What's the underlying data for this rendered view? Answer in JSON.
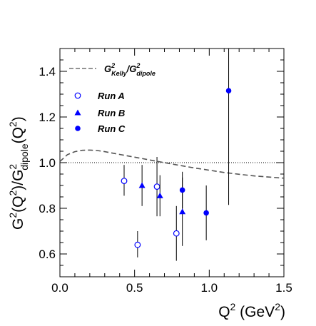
{
  "chart_data": {
    "type": "scatter",
    "xlabel": {
      "base": "Q",
      "sup": "2",
      "unit": " (GeV",
      "unit_sup": "2",
      "close": ")"
    },
    "ylabel": {
      "p1": "G",
      "p1_sup": "2",
      "p2": "(Q",
      "p2_sup": "2",
      "p3": ")/G",
      "p3_sup": "2",
      "p3_sub": "dipole",
      "p4": "(Q",
      "p4_sup": "2",
      "p5": ")"
    },
    "xlim": [
      0.0,
      1.5
    ],
    "ylim": [
      0.5,
      1.5
    ],
    "x_ticks": [
      0.0,
      0.5,
      1.0,
      1.5
    ],
    "x_tick_labels": [
      "0.0",
      "0.5",
      "1.0",
      "1.5"
    ],
    "y_ticks": [
      0.6,
      0.8,
      1.0,
      1.2,
      1.4
    ],
    "y_tick_labels": [
      "0.6",
      "0.8",
      "1.0",
      "1.2",
      "1.4"
    ],
    "reference_line_y": 1.0,
    "legend_position": "top-left",
    "legend": {
      "curve": {
        "main": "G",
        "sup": "2",
        "sub": "Kelly",
        "slash": "/G",
        "sup2": "2",
        "sub2": "dipole"
      }
    },
    "series": [
      {
        "name": "Run A",
        "marker": "open-circle",
        "color": "#0000ff",
        "points": [
          {
            "x": 0.43,
            "y": 0.92,
            "lo": 0.855,
            "hi": 0.99
          },
          {
            "x": 0.52,
            "y": 0.64,
            "lo": 0.585,
            "hi": 0.7
          },
          {
            "x": 0.65,
            "y": 0.895,
            "lo": 0.765,
            "hi": 1.025
          },
          {
            "x": 0.78,
            "y": 0.69,
            "lo": 0.57,
            "hi": 0.81
          }
        ]
      },
      {
        "name": "Run B",
        "marker": "filled-triangle",
        "color": "#0000ff",
        "points": [
          {
            "x": 0.55,
            "y": 0.9,
            "lo": 0.81,
            "hi": 0.99
          },
          {
            "x": 0.67,
            "y": 0.855,
            "lo": 0.765,
            "hi": 0.945
          },
          {
            "x": 0.82,
            "y": 0.785,
            "lo": 0.635,
            "hi": 0.935
          }
        ]
      },
      {
        "name": "Run C",
        "marker": "filled-circle",
        "color": "#0000ff",
        "points": [
          {
            "x": 0.82,
            "y": 0.88,
            "lo": 0.8,
            "hi": 0.96
          },
          {
            "x": 0.98,
            "y": 0.78,
            "lo": 0.66,
            "hi": 0.9
          },
          {
            "x": 1.13,
            "y": 1.315,
            "lo": 0.815,
            "hi": 1.5
          }
        ]
      }
    ],
    "curve": {
      "style": "dashed",
      "color": "#555555",
      "points": [
        [
          0.0,
          1.005
        ],
        [
          0.05,
          1.035
        ],
        [
          0.1,
          1.048
        ],
        [
          0.15,
          1.054
        ],
        [
          0.2,
          1.055
        ],
        [
          0.25,
          1.053
        ],
        [
          0.3,
          1.048
        ],
        [
          0.4,
          1.036
        ],
        [
          0.5,
          1.024
        ],
        [
          0.6,
          1.012
        ],
        [
          0.7,
          1.0
        ],
        [
          0.8,
          0.988
        ],
        [
          0.9,
          0.977
        ],
        [
          1.0,
          0.967
        ],
        [
          1.1,
          0.957
        ],
        [
          1.2,
          0.949
        ],
        [
          1.3,
          0.942
        ],
        [
          1.4,
          0.937
        ],
        [
          1.5,
          0.932
        ]
      ]
    }
  }
}
